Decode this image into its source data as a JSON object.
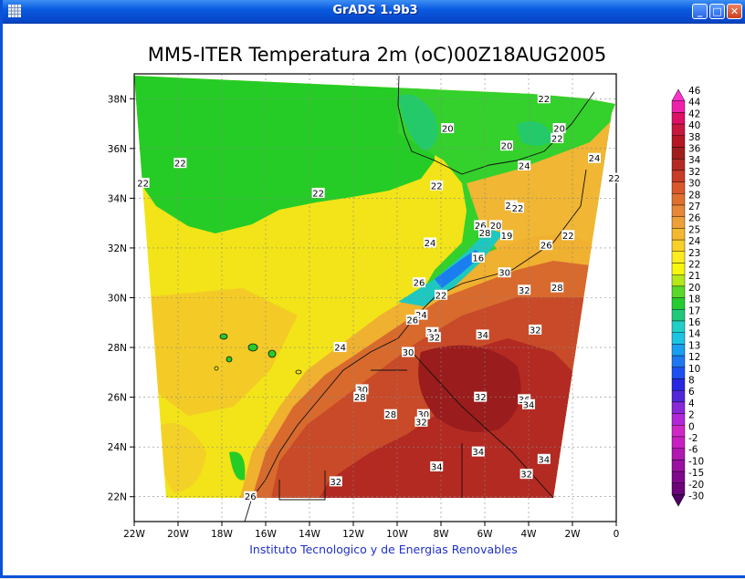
{
  "window": {
    "title": "GrADS 1.9b3"
  },
  "chart_data": {
    "type": "heatmap",
    "title": "MM5-ITER Temperatura 2m (oC)00Z18AUG2005",
    "subtitle": "",
    "footer": "Instituto Tecnologico y de Energias Renovables",
    "xlabel": "",
    "ylabel": "",
    "xlim": [
      -22,
      0
    ],
    "ylim": [
      21,
      39
    ],
    "x_ticks": [
      "22W",
      "20W",
      "18W",
      "16W",
      "14W",
      "12W",
      "10W",
      "8W",
      "6W",
      "4W",
      "2W",
      "0"
    ],
    "y_ticks": [
      "22N",
      "24N",
      "26N",
      "28N",
      "30N",
      "32N",
      "34N",
      "36N",
      "38N"
    ],
    "grid": true,
    "colorbar": {
      "placement": "right",
      "levels": [
        "46",
        "44",
        "42",
        "40",
        "38",
        "36",
        "34",
        "32",
        "30",
        "28",
        "27",
        "26",
        "25",
        "24",
        "23",
        "22",
        "21",
        "20",
        "18",
        "17",
        "16",
        "14",
        "13",
        "12",
        "10",
        "8",
        "6",
        "4",
        "2",
        "0",
        "-2",
        "-6",
        "-10",
        "-15",
        "-20",
        "-30"
      ],
      "colors": [
        "#ff33cc",
        "#ee22aa",
        "#dd1166",
        "#c81840",
        "#b41822",
        "#a01e1e",
        "#b42a22",
        "#c83c28",
        "#d8582c",
        "#e07030",
        "#e68838",
        "#eea038",
        "#f4b830",
        "#f8d028",
        "#fcec20",
        "#f6f610",
        "#b4e81a",
        "#5ad82a",
        "#24cc30",
        "#20c87a",
        "#20d0c8",
        "#1cc4e4",
        "#1a9ef0",
        "#1e78f0",
        "#1e50f0",
        "#2828e0",
        "#5028d8",
        "#8828d8",
        "#b028d8",
        "#d028c8",
        "#c820c0",
        "#b018b0",
        "#9a10a0",
        "#80088c",
        "#6a0478",
        "#4e0064"
      ]
    },
    "contour_labels": [
      {
        "x": -7.7,
        "y": 36.8,
        "v": "20"
      },
      {
        "x": -3.3,
        "y": 38.0,
        "v": "22"
      },
      {
        "x": -2.6,
        "y": 36.8,
        "v": "20"
      },
      {
        "x": -2.7,
        "y": 36.4,
        "v": "22"
      },
      {
        "x": -5.0,
        "y": 36.1,
        "v": "20"
      },
      {
        "x": -1.0,
        "y": 35.6,
        "v": "24"
      },
      {
        "x": -4.2,
        "y": 35.3,
        "v": "24"
      },
      {
        "x": -0.1,
        "y": 34.8,
        "v": "22"
      },
      {
        "x": -19.9,
        "y": 35.4,
        "v": "22"
      },
      {
        "x": -21.6,
        "y": 34.6,
        "v": "22"
      },
      {
        "x": -13.6,
        "y": 34.2,
        "v": "22"
      },
      {
        "x": -8.2,
        "y": 34.5,
        "v": "22"
      },
      {
        "x": -4.8,
        "y": 33.7,
        "v": "24"
      },
      {
        "x": -4.5,
        "y": 33.6,
        "v": "22"
      },
      {
        "x": -6.2,
        "y": 32.9,
        "v": "26"
      },
      {
        "x": -5.5,
        "y": 32.9,
        "v": "20"
      },
      {
        "x": -6.0,
        "y": 32.6,
        "v": "28"
      },
      {
        "x": -5.0,
        "y": 32.5,
        "v": "19"
      },
      {
        "x": -2.2,
        "y": 32.5,
        "v": "22"
      },
      {
        "x": -3.2,
        "y": 32.1,
        "v": "26"
      },
      {
        "x": -8.5,
        "y": 32.2,
        "v": "24"
      },
      {
        "x": -6.3,
        "y": 31.6,
        "v": "16"
      },
      {
        "x": -5.1,
        "y": 31.0,
        "v": "30"
      },
      {
        "x": -9.0,
        "y": 30.6,
        "v": "26"
      },
      {
        "x": -2.7,
        "y": 30.4,
        "v": "28"
      },
      {
        "x": -8.0,
        "y": 30.1,
        "v": "22"
      },
      {
        "x": -4.2,
        "y": 30.3,
        "v": "32"
      },
      {
        "x": -8.9,
        "y": 29.3,
        "v": "24"
      },
      {
        "x": -9.3,
        "y": 29.1,
        "v": "26"
      },
      {
        "x": -8.4,
        "y": 28.6,
        "v": "34"
      },
      {
        "x": -8.3,
        "y": 28.4,
        "v": "32"
      },
      {
        "x": -6.1,
        "y": 28.5,
        "v": "34"
      },
      {
        "x": -3.7,
        "y": 28.7,
        "v": "32"
      },
      {
        "x": -12.6,
        "y": 28.0,
        "v": "24"
      },
      {
        "x": -9.5,
        "y": 27.8,
        "v": "30"
      },
      {
        "x": -11.6,
        "y": 26.3,
        "v": "30"
      },
      {
        "x": -11.7,
        "y": 26.0,
        "v": "28"
      },
      {
        "x": -6.2,
        "y": 26.0,
        "v": "32"
      },
      {
        "x": -4.2,
        "y": 25.9,
        "v": "36"
      },
      {
        "x": -4.0,
        "y": 25.7,
        "v": "34"
      },
      {
        "x": -10.3,
        "y": 25.3,
        "v": "28"
      },
      {
        "x": -8.8,
        "y": 25.3,
        "v": "30"
      },
      {
        "x": -8.9,
        "y": 25.0,
        "v": "32"
      },
      {
        "x": -6.3,
        "y": 23.8,
        "v": "34"
      },
      {
        "x": -3.3,
        "y": 23.5,
        "v": "34"
      },
      {
        "x": -8.2,
        "y": 23.2,
        "v": "34"
      },
      {
        "x": -4.1,
        "y": 22.9,
        "v": "32"
      },
      {
        "x": -12.8,
        "y": 22.6,
        "v": "32"
      },
      {
        "x": -16.7,
        "y": 22.0,
        "v": "26"
      }
    ]
  }
}
